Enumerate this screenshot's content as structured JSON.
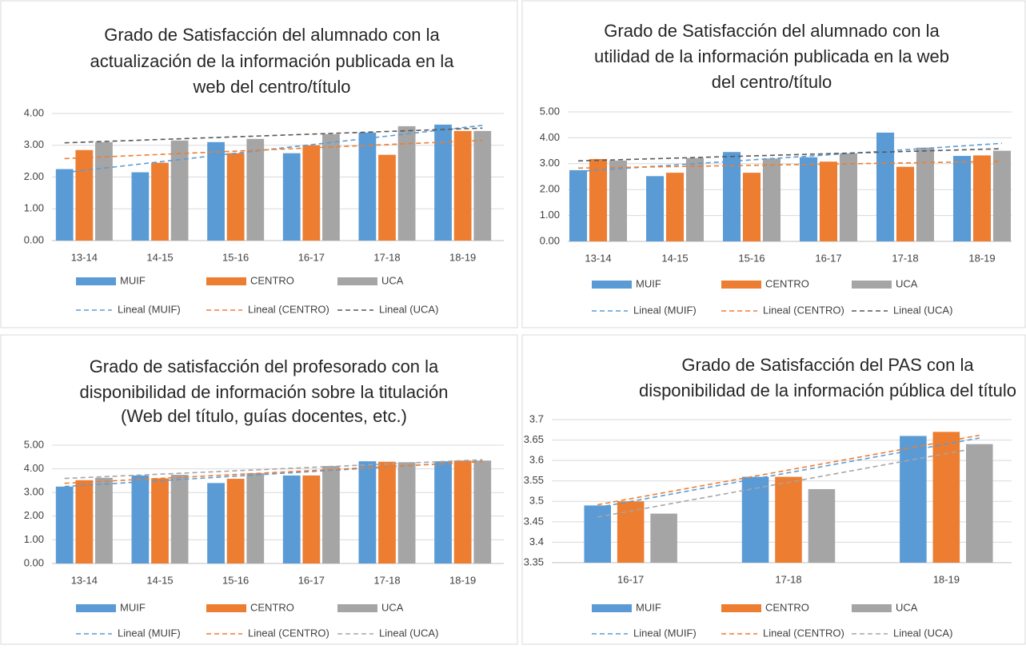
{
  "chart_data": [
    {
      "type": "bar",
      "title": [
        "Grado de Satisfacción del alumnado con la",
        "actualización de la información publicada en la",
        "web del centro/título"
      ],
      "categories": [
        "13-14",
        "14-15",
        "15-16",
        "16-17",
        "17-18",
        "18-19"
      ],
      "series": [
        {
          "name": "MUIF",
          "color": "#5b9bd5",
          "trend_name": "Lineal (MUIF)",
          "trend_color": "#5b9bd5",
          "values": [
            2.25,
            2.15,
            3.1,
            2.75,
            3.4,
            3.65
          ]
        },
        {
          "name": "CENTRO",
          "color": "#ed7d31",
          "trend_name": "Lineal (CENTRO)",
          "trend_color": "#ed7d31",
          "values": [
            2.85,
            2.45,
            2.75,
            3.0,
            2.7,
            3.45
          ]
        },
        {
          "name": "UCA",
          "color": "#a5a5a5",
          "trend_name": "Lineal (UCA)",
          "trend_color": "#595959",
          "values": [
            3.1,
            3.15,
            3.2,
            3.35,
            3.6,
            3.45
          ]
        }
      ],
      "ylim": [
        0,
        4
      ],
      "yticks": [
        {
          "value": 0,
          "label": "0.00"
        },
        {
          "value": 1,
          "label": "1.00"
        },
        {
          "value": 2,
          "label": "2.00"
        },
        {
          "value": 3,
          "label": "3.00"
        },
        {
          "value": 4,
          "label": "4.00"
        }
      ],
      "grid": true
    },
    {
      "type": "bar",
      "title": [
        "Grado de Satisfacción del alumnado con la",
        "utilidad de la información publicada en la web",
        "del centro/título"
      ],
      "categories": [
        "13-14",
        "14-15",
        "15-16",
        "16-17",
        "17-18",
        "18-19"
      ],
      "series": [
        {
          "name": "MUIF",
          "color": "#5b9bd5",
          "trend_name": "Lineal (MUIF)",
          "trend_color": "#5b9bd5",
          "values": [
            2.75,
            2.52,
            3.45,
            3.25,
            4.2,
            3.3
          ]
        },
        {
          "name": "CENTRO",
          "color": "#ed7d31",
          "trend_name": "Lineal (CENTRO)",
          "trend_color": "#ed7d31",
          "values": [
            3.18,
            2.65,
            2.65,
            3.08,
            2.88,
            3.32
          ]
        },
        {
          "name": "UCA",
          "color": "#a5a5a5",
          "trend_name": "Lineal (UCA)",
          "trend_color": "#595959",
          "values": [
            3.12,
            3.22,
            3.2,
            3.4,
            3.62,
            3.5
          ]
        }
      ],
      "ylim": [
        0,
        5
      ],
      "yticks": [
        {
          "value": 0,
          "label": "0.00"
        },
        {
          "value": 1,
          "label": "1.00"
        },
        {
          "value": 2,
          "label": "2.00"
        },
        {
          "value": 3,
          "label": "3.00"
        },
        {
          "value": 4,
          "label": "4.00"
        },
        {
          "value": 5,
          "label": "5.00"
        }
      ],
      "grid": true
    },
    {
      "type": "bar",
      "title": [
        "Grado de satisfacción del profesorado con  la",
        "disponibilidad de información sobre la titulación",
        "(Web del título, guías docentes, etc.)"
      ],
      "categories": [
        "13-14",
        "14-15",
        "15-16",
        "16-17",
        "17-18",
        "18-19"
      ],
      "series": [
        {
          "name": "MUIF",
          "color": "#5b9bd5",
          "trend_name": "Lineal (MUIF)",
          "trend_color": "#5b9bd5",
          "values": [
            3.25,
            3.72,
            3.4,
            3.72,
            4.32,
            4.32
          ]
        },
        {
          "name": "CENTRO",
          "color": "#ed7d31",
          "trend_name": "Lineal (CENTRO)",
          "trend_color": "#ed7d31",
          "values": [
            3.52,
            3.6,
            3.58,
            3.72,
            4.3,
            4.35
          ]
        },
        {
          "name": "UCA",
          "color": "#a5a5a5",
          "trend_name": "Lineal (UCA)",
          "trend_color": "#a5a5a5",
          "values": [
            3.62,
            3.75,
            3.82,
            4.12,
            4.28,
            4.35
          ]
        }
      ],
      "ylim": [
        0,
        5
      ],
      "yticks": [
        {
          "value": 0,
          "label": "0.00"
        },
        {
          "value": 1,
          "label": "1.00"
        },
        {
          "value": 2,
          "label": "2.00"
        },
        {
          "value": 3,
          "label": "3.00"
        },
        {
          "value": 4,
          "label": "4.00"
        },
        {
          "value": 5,
          "label": "5.00"
        }
      ],
      "grid": true
    },
    {
      "type": "bar",
      "title": [
        "Grado de Satisfacción del PAS con la",
        "disponibilidad de la información pública del título"
      ],
      "categories": [
        "16-17",
        "17-18",
        "18-19"
      ],
      "series": [
        {
          "name": "MUIF",
          "color": "#5b9bd5",
          "trend_name": "Lineal (MUIF)",
          "trend_color": "#5b9bd5",
          "values": [
            3.49,
            3.56,
            3.66
          ]
        },
        {
          "name": "CENTRO",
          "color": "#ed7d31",
          "trend_name": "Lineal (CENTRO)",
          "trend_color": "#ed7d31",
          "values": [
            3.5,
            3.56,
            3.67
          ]
        },
        {
          "name": "UCA",
          "color": "#a5a5a5",
          "trend_name": "Lineal (UCA)",
          "trend_color": "#a5a5a5",
          "values": [
            3.47,
            3.53,
            3.64
          ]
        }
      ],
      "ylim": [
        3.35,
        3.7
      ],
      "yticks": [
        3.35,
        3.4,
        3.45,
        3.5,
        3.55,
        3.6,
        3.65,
        3.7
      ],
      "grid": true
    }
  ]
}
